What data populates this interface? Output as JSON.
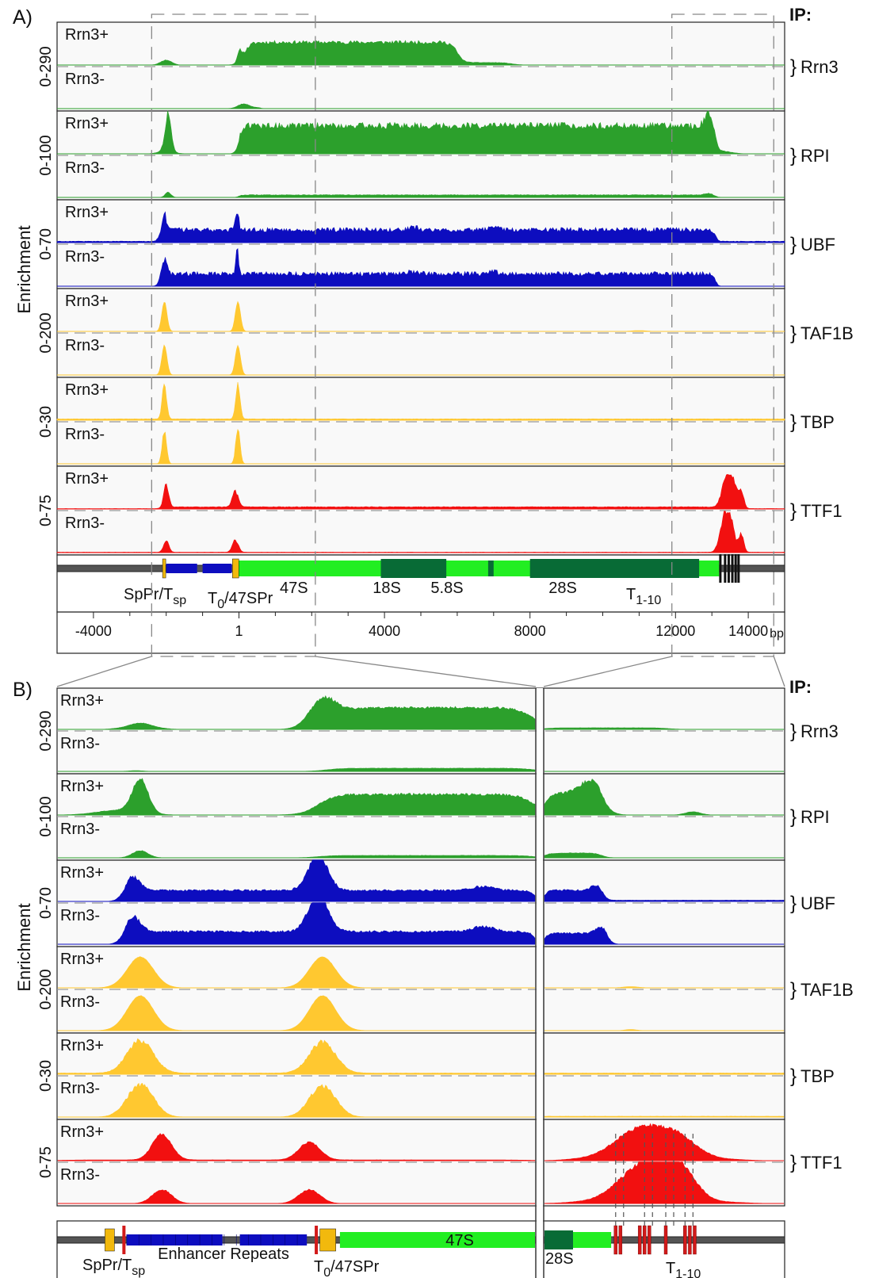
{
  "figure": {
    "ip_header": "IP:",
    "y_axis_label": "Enrichment",
    "condition_labels": [
      "Rrn3+",
      "Rrn3-"
    ],
    "colors": {
      "green": "#2ca02c",
      "blue": "#0d0dbf",
      "yellow": "#ffc830",
      "red": "#f21010",
      "gene_light": "#22ee22",
      "gene_dark": "#086b36",
      "enhancer": "#0d0dbf",
      "promoter": "#f2b90d",
      "terminator_a": "#111111",
      "terminator_b": "#d21a1a"
    }
  },
  "chart_data": [
    {
      "panel": "A)",
      "type": "area",
      "x_unit": "bp",
      "xlim": [
        -5000,
        15000
      ],
      "x_ticks": [
        {
          "value": -4000,
          "label": "-4000"
        },
        {
          "value": 1,
          "label": "1"
        },
        {
          "value": 4000,
          "label": "4000"
        },
        {
          "value": 8000,
          "label": "8000"
        },
        {
          "value": 12000,
          "label": "12000"
        },
        {
          "value": 14000,
          "label": "14000"
        }
      ],
      "x_axis_unit_label": "bp",
      "tracks": [
        {
          "ip": "Rrn3",
          "range_label": "0-290",
          "color": "green",
          "noise": 0.08,
          "plus": {
            "base": 0.0,
            "features": [
              [
                -2000,
                0,
                150,
                0.12
              ],
              [
                20,
                0,
                60,
                0.25
              ],
              [
                140,
                6000,
                300,
                0.55
              ],
              [
                6000,
                7500,
                400,
                0.06
              ]
            ]
          },
          "minus": {
            "base": 0.0,
            "features": [
              [
                100,
                0,
                150,
                0.1
              ],
              [
                100,
                600,
                120,
                0.03
              ]
            ]
          }
        },
        {
          "ip": "RPI",
          "range_label": "0-100",
          "color": "green",
          "noise": 0.12,
          "plus": {
            "base": 0.0,
            "features": [
              [
                -1950,
                0,
                80,
                0.9
              ],
              [
                -2000,
                0,
                200,
                0.08
              ],
              [
                0,
                13100,
                160,
                0.68
              ],
              [
                12900,
                0,
                100,
                0.25
              ],
              [
                13300,
                0,
                250,
                0.06
              ]
            ]
          },
          "minus": {
            "base": 0.0,
            "features": [
              [
                -1950,
                0,
                80,
                0.12
              ],
              [
                0,
                13100,
                160,
                0.06
              ],
              [
                12900,
                0,
                100,
                0.04
              ]
            ]
          }
        },
        {
          "ip": "UBF",
          "range_label": "0-70",
          "color": "blue",
          "noise": 0.18,
          "plus": {
            "base": 0.03,
            "features": [
              [
                -2200,
                13100,
                120,
                0.28
              ],
              [
                -2050,
                0,
                60,
                0.35
              ],
              [
                -50,
                0,
                40,
                0.55
              ],
              [
                4800,
                0,
                150,
                0.05
              ],
              [
                7000,
                0,
                150,
                0.05
              ]
            ]
          },
          "minus": {
            "base": 0.0,
            "features": [
              [
                -2200,
                13100,
                120,
                0.3
              ],
              [
                -2050,
                0,
                60,
                0.4
              ],
              [
                -50,
                0,
                40,
                0.58
              ],
              [
                4800,
                0,
                150,
                0.05
              ],
              [
                7000,
                0,
                150,
                0.05
              ]
            ]
          }
        },
        {
          "ip": "TAF1B",
          "range_label": "0-200",
          "color": "yellow",
          "noise": 0.02,
          "plus": {
            "base": 0.0,
            "features": [
              [
                -2050,
                0,
                70,
                0.72
              ],
              [
                -30,
                0,
                70,
                0.72
              ],
              [
                11000,
                0,
                200,
                0.02
              ]
            ]
          },
          "minus": {
            "base": 0.0,
            "features": [
              [
                -2050,
                0,
                70,
                0.72
              ],
              [
                -30,
                0,
                70,
                0.72
              ]
            ]
          }
        },
        {
          "ip": "TBP",
          "range_label": "0-30",
          "color": "yellow",
          "noise": 0.1,
          "plus": {
            "base": 0.03,
            "features": [
              [
                -2050,
                0,
                60,
                0.82
              ],
              [
                -30,
                0,
                60,
                0.82
              ]
            ]
          },
          "minus": {
            "base": 0.0,
            "features": [
              [
                -2050,
                0,
                60,
                0.82
              ],
              [
                -30,
                0,
                60,
                0.82
              ]
            ]
          }
        },
        {
          "ip": "TTF1",
          "range_label": "0-75",
          "color": "red",
          "noise": 0.12,
          "plus": {
            "base": 0.01,
            "features": [
              [
                -2000,
                0,
                70,
                0.55
              ],
              [
                -100,
                0,
                80,
                0.38
              ],
              [
                -2000,
                13800,
                300,
                0.04
              ],
              [
                13400,
                0,
                120,
                0.72
              ],
              [
                13600,
                0,
                80,
                0.5
              ],
              [
                13800,
                0,
                70,
                0.45
              ]
            ]
          },
          "minus": {
            "base": 0.01,
            "features": [
              [
                -2000,
                0,
                70,
                0.3
              ],
              [
                -100,
                0,
                80,
                0.3
              ],
              [
                13350,
                0,
                120,
                0.9
              ],
              [
                13550,
                0,
                80,
                0.6
              ],
              [
                13800,
                0,
                70,
                0.45
              ]
            ]
          }
        }
      ],
      "gene_map": {
        "label_47S": "47S",
        "label_18S": "18S",
        "label_58S": "5.8S",
        "label_28S": "28S",
        "label_spacer_promoter": "SpPr/T",
        "label_spacer_promoter_sub": "sp",
        "label_t0": "T",
        "label_t0_sub": "0",
        "label_t0_rest": "/47SPr",
        "label_terminators": "T",
        "label_terminators_sub": "1-10"
      }
    },
    {
      "panel": "B)",
      "type": "area",
      "x_unit": "bp",
      "xlim_left": [
        -3000,
        2500
      ],
      "xlim_right": [
        12500,
        15000
      ],
      "tracks": [
        {
          "ip": "Rrn3",
          "range_label": "0-290",
          "color": "green",
          "noise": 0.05,
          "plus": {
            "base": 0.0,
            "features": [
              [
                -2050,
                0,
                130,
                0.14
              ],
              [
                -2400,
                -1700,
                150,
                0.02
              ],
              [
                50,
                0,
                150,
                0.7
              ],
              [
                200,
                2500,
                350,
                0.55
              ]
            ]
          },
          "minus": {
            "base": 0.0,
            "features": [
              [
                100,
                2500,
                300,
                0.08
              ],
              [
                -2100,
                0,
                80,
                0.02
              ]
            ]
          },
          "right_plus": {
            "base": 0.0,
            "features": [
              [
                12500,
                13800,
                200,
                0.04
              ]
            ]
          },
          "right_minus": {
            "base": 0.0,
            "features": []
          }
        },
        {
          "ip": "RPI",
          "range_label": "0-100",
          "color": "green",
          "noise": 0.06,
          "plus": {
            "base": 0.0,
            "features": [
              [
                -2050,
                0,
                90,
                0.85
              ],
              [
                -2300,
                0,
                250,
                0.12
              ],
              [
                0,
                2500,
                320,
                0.52
              ]
            ]
          },
          "minus": {
            "base": 0.0,
            "features": [
              [
                -2050,
                0,
                90,
                0.18
              ],
              [
                0,
                2500,
                300,
                0.06
              ]
            ]
          },
          "right_plus": {
            "base": 0.0,
            "features": [
              [
                12500,
                13100,
                120,
                0.55
              ],
              [
                13000,
                0,
                120,
                0.35
              ],
              [
                14050,
                0,
                80,
                0.08
              ]
            ]
          },
          "right_minus": {
            "base": 0.0,
            "features": [
              [
                12500,
                13100,
                120,
                0.12
              ]
            ]
          }
        },
        {
          "ip": "UBF",
          "range_label": "0-70",
          "color": "blue",
          "noise": 0.08,
          "plus": {
            "base": 0.0,
            "features": [
              [
                -2200,
                2500,
                100,
                0.28
              ],
              [
                -2150,
                0,
                90,
                0.38
              ],
              [
                -1,
                0,
                110,
                0.9
              ],
              [
                1900,
                0,
                120,
                0.1
              ]
            ]
          },
          "minus": {
            "base": 0.0,
            "features": [
              [
                -2200,
                2500,
                100,
                0.32
              ],
              [
                -2150,
                0,
                90,
                0.42
              ],
              [
                -1,
                0,
                110,
                0.95
              ],
              [
                1900,
                0,
                120,
                0.13
              ]
            ]
          },
          "right_plus": {
            "base": 0.03,
            "features": [
              [
                12500,
                13100,
                80,
                0.25
              ],
              [
                13050,
                0,
                60,
                0.15
              ]
            ]
          },
          "right_minus": {
            "base": 0.0,
            "features": [
              [
                12500,
                13150,
                80,
                0.28
              ],
              [
                13100,
                0,
                60,
                0.18
              ]
            ]
          }
        },
        {
          "ip": "TAF1B",
          "range_label": "0-200",
          "color": "yellow",
          "noise": 0.01,
          "plus": {
            "base": 0.0,
            "features": [
              [
                -2050,
                0,
                150,
                0.78
              ],
              [
                50,
                0,
                150,
                0.78
              ]
            ]
          },
          "minus": {
            "base": 0.0,
            "features": [
              [
                -2050,
                0,
                150,
                0.88
              ],
              [
                50,
                0,
                150,
                0.88
              ]
            ]
          },
          "right_plus": {
            "base": 0.0,
            "features": [
              [
                13400,
                0,
                80,
                0.03
              ]
            ]
          },
          "right_minus": {
            "base": 0.0,
            "features": [
              [
                13400,
                0,
                60,
                0.03
              ]
            ]
          }
        },
        {
          "ip": "TBP",
          "range_label": "0-30",
          "color": "yellow",
          "noise": 0.08,
          "plus": {
            "base": 0.03,
            "features": [
              [
                -2050,
                0,
                150,
                0.82
              ],
              [
                50,
                0,
                150,
                0.78
              ]
            ]
          },
          "minus": {
            "base": 0.0,
            "features": [
              [
                -2050,
                0,
                150,
                0.82
              ],
              [
                50,
                0,
                150,
                0.78
              ]
            ]
          },
          "right_plus": {
            "base": 0.03,
            "features": []
          },
          "right_minus": {
            "base": 0.02,
            "features": []
          }
        },
        {
          "ip": "TTF1",
          "range_label": "0-75",
          "color": "red",
          "noise": 0.06,
          "plus": {
            "base": 0.0,
            "features": [
              [
                -1800,
                0,
                110,
                0.65
              ],
              [
                -100,
                0,
                120,
                0.45
              ],
              [
                -3000,
                2500,
                600,
                0.02
              ]
            ]
          },
          "minus": {
            "base": 0.0,
            "features": [
              [
                -1800,
                0,
                110,
                0.35
              ],
              [
                -100,
                0,
                120,
                0.35
              ]
            ]
          },
          "right_plus": {
            "base": 0.0,
            "features": [
              [
                13500,
                0,
                260,
                0.75
              ],
              [
                13900,
                0,
                200,
                0.45
              ],
              [
                12700,
                14600,
                300,
                0.04
              ]
            ]
          },
          "right_minus": {
            "base": 0.0,
            "features": [
              [
                13500,
                0,
                240,
                0.85
              ],
              [
                13750,
                0,
                150,
                0.55
              ],
              [
                13950,
                0,
                160,
                0.6
              ],
              [
                12700,
                14600,
                300,
                0.04
              ]
            ]
          }
        }
      ],
      "gene_map": {
        "label_spacer_promoter": "SpPr/T",
        "label_spacer_promoter_sub": "sp",
        "label_enhancer": "Enhancer Repeats",
        "label_t0": "T",
        "label_t0_sub": "0",
        "label_t0_rest": "/47SPr",
        "label_47S": "47S",
        "label_28S": "28S",
        "label_terminators": "T",
        "label_terminators_sub": "1-10"
      }
    }
  ]
}
